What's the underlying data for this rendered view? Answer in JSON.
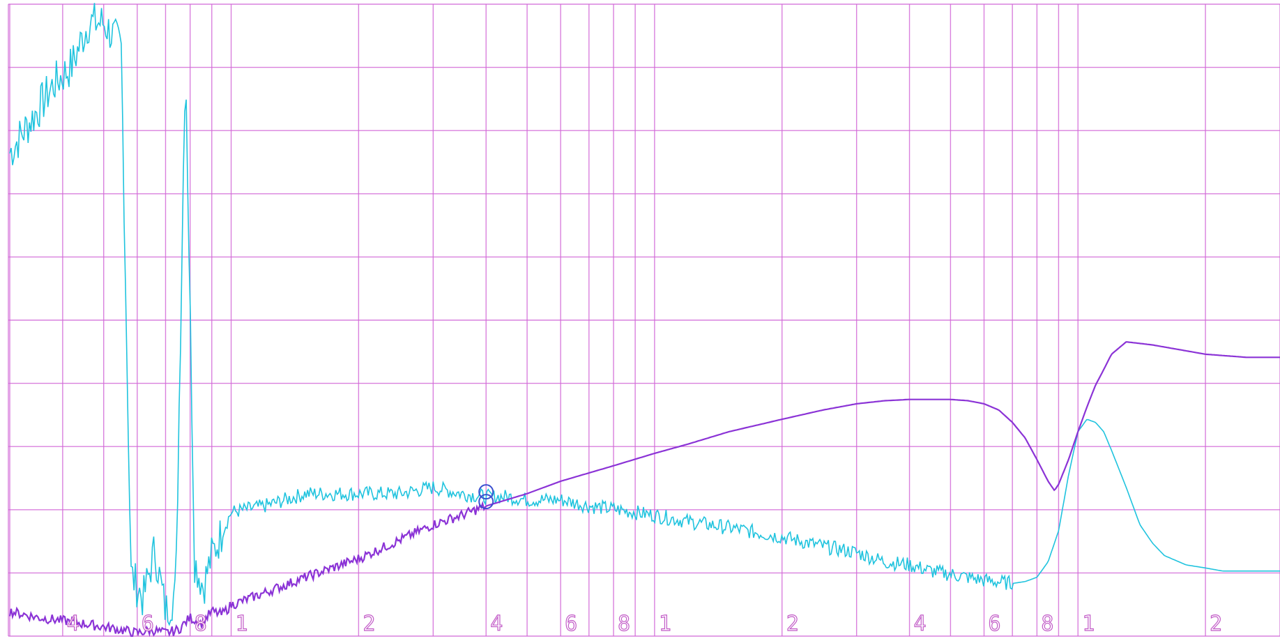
{
  "chart_data": {
    "type": "line",
    "title": "",
    "xlabel": "",
    "ylabel": "",
    "x_scale": "log",
    "grid": true,
    "legend": "none",
    "x_tick_labels": [
      "4",
      "6",
      "8",
      "1",
      "2",
      "4",
      "6",
      "8",
      "1",
      "2",
      "4",
      "6",
      "8",
      "1",
      "2"
    ],
    "colors": {
      "grid": "#d36ad8",
      "series_a": "#1fc3de",
      "series_b": "#8b33d6",
      "marker": "#3a4fd0"
    },
    "marker": {
      "shape": "double-circle",
      "x": 0.04
    },
    "series": [
      {
        "color": "#1fc3de",
        "noisy_below": 0.7,
        "x": [
          0.003,
          0.0032,
          0.0035,
          0.0038,
          0.0042,
          0.0046,
          0.005,
          0.0055,
          0.0058,
          0.0062,
          0.0066,
          0.007,
          0.0074,
          0.0078,
          0.0082,
          0.0086,
          0.009,
          0.01,
          0.012,
          0.015,
          0.02,
          0.025,
          0.03,
          0.035,
          0.04,
          0.045,
          0.05,
          0.06,
          0.07,
          0.08,
          0.1,
          0.12,
          0.15,
          0.2,
          0.25,
          0.3,
          0.35,
          0.4,
          0.45,
          0.5,
          0.6,
          0.7,
          0.75,
          0.8,
          0.85,
          0.9,
          0.95,
          1.0,
          1.05,
          1.1,
          1.15,
          1.2,
          1.3,
          1.4,
          1.5,
          1.6,
          1.8,
          2.0,
          2.2,
          2.5,
          2.8,
          3.0
        ],
        "y": [
          7.8,
          8.1,
          8.5,
          8.9,
          9.2,
          9.9,
          9.9,
          9.5,
          1.0,
          0.6,
          1.4,
          0.4,
          0.7,
          9.4,
          1.2,
          0.8,
          1.3,
          2.0,
          2.1,
          2.3,
          2.3,
          2.3,
          2.4,
          2.3,
          2.25,
          2.25,
          2.2,
          2.2,
          2.1,
          2.05,
          1.95,
          1.85,
          1.75,
          1.6,
          1.45,
          1.35,
          1.2,
          1.15,
          1.05,
          1.0,
          0.9,
          0.85,
          0.88,
          0.95,
          1.2,
          1.7,
          2.6,
          3.3,
          3.5,
          3.45,
          3.3,
          3.0,
          2.4,
          1.8,
          1.5,
          1.3,
          1.15,
          1.1,
          1.05,
          1.05,
          1.05,
          1.05
        ]
      },
      {
        "color": "#8b33d6",
        "noisy_below": 0.04,
        "x": [
          0.003,
          0.0035,
          0.004,
          0.0045,
          0.005,
          0.0055,
          0.006,
          0.0065,
          0.007,
          0.0075,
          0.008,
          0.0085,
          0.009,
          0.0095,
          0.01,
          0.012,
          0.015,
          0.02,
          0.025,
          0.03,
          0.035,
          0.04,
          0.05,
          0.06,
          0.08,
          0.1,
          0.12,
          0.15,
          0.2,
          0.25,
          0.3,
          0.35,
          0.4,
          0.45,
          0.5,
          0.55,
          0.6,
          0.65,
          0.7,
          0.75,
          0.8,
          0.85,
          0.88,
          0.9,
          0.95,
          1.0,
          1.05,
          1.1,
          1.15,
          1.2,
          1.3,
          1.5,
          2.0,
          2.5,
          3.0
        ],
        "y": [
          0.4,
          0.3,
          0.25,
          0.2,
          0.15,
          0.1,
          0.05,
          0.1,
          0.05,
          0.1,
          0.3,
          0.2,
          0.4,
          0.35,
          0.5,
          0.7,
          0.95,
          1.25,
          1.55,
          1.8,
          1.95,
          2.1,
          2.3,
          2.5,
          2.75,
          2.95,
          3.1,
          3.3,
          3.5,
          3.65,
          3.75,
          3.8,
          3.82,
          3.82,
          3.82,
          3.8,
          3.75,
          3.65,
          3.45,
          3.2,
          2.85,
          2.5,
          2.35,
          2.45,
          2.85,
          3.3,
          3.7,
          4.05,
          4.3,
          4.55,
          4.75,
          4.7,
          4.55,
          4.5,
          4.5
        ]
      }
    ]
  }
}
